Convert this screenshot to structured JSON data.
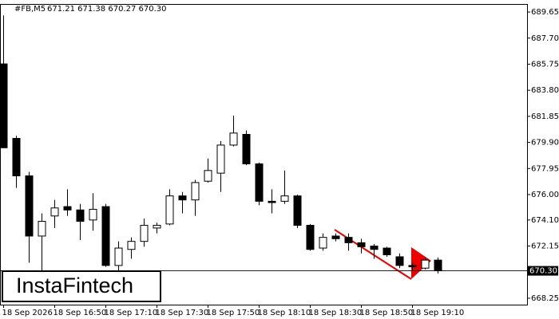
{
  "chart_data": {
    "type": "candlestick",
    "symbol": "#FB,M5",
    "ohlc_text": "671.21 671.38 670.27 670.30",
    "watermark": "InstaFintech",
    "categories": [
      "18 Sep 2026",
      null,
      null,
      null,
      "18 Sep 16:50",
      null,
      null,
      null,
      "18 Sep 17:10",
      null,
      null,
      null,
      "18 Sep 17:30",
      null,
      null,
      null,
      "18 Sep 17:50",
      null,
      null,
      null,
      "18 Sep 18:10",
      null,
      null,
      null,
      "18 Sep 18:30",
      null,
      null,
      null,
      "18 Sep 18:50",
      null,
      null,
      null,
      "18 Sep 19:10",
      null,
      null
    ],
    "open": [
      685.77,
      680.2,
      677.4,
      672.9,
      674.4,
      675.1,
      674.85,
      674.1,
      675.1,
      670.7,
      671.9,
      672.5,
      673.5,
      673.8,
      675.9,
      675.6,
      677.0,
      677.6,
      679.7,
      680.5,
      678.3,
      675.5,
      675.5,
      675.9,
      673.7,
      672.0,
      672.9,
      672.8,
      672.4,
      672.15,
      672.0,
      671.35,
      670.7,
      670.5,
      671.1
    ],
    "high": [
      689.4,
      680.4,
      677.7,
      674.6,
      675.6,
      676.4,
      675.3,
      676.1,
      675.3,
      672.5,
      672.8,
      674.2,
      673.9,
      676.4,
      676.2,
      677.1,
      678.7,
      680.0,
      681.9,
      680.8,
      678.4,
      676.4,
      677.8,
      676.0,
      673.8,
      673.1,
      673.1,
      673.1,
      672.7,
      672.3,
      672.1,
      671.6,
      670.9,
      671.3,
      671.3
    ],
    "low": [
      679.5,
      676.5,
      670.9,
      670.3,
      673.5,
      674.4,
      672.6,
      673.3,
      670.6,
      670.3,
      671.2,
      672.1,
      673.1,
      673.7,
      674.6,
      674.4,
      676.9,
      676.2,
      679.6,
      678.2,
      675.2,
      674.6,
      675.3,
      673.5,
      671.8,
      671.8,
      672.5,
      671.8,
      671.6,
      671.2,
      671.35,
      670.5,
      670.3,
      670.4,
      670.1
    ],
    "close": [
      679.5,
      677.4,
      672.9,
      674.0,
      675.0,
      674.85,
      674.0,
      674.9,
      670.7,
      672.0,
      672.5,
      673.7,
      673.7,
      675.9,
      675.6,
      676.9,
      677.8,
      679.7,
      680.6,
      678.3,
      675.5,
      675.4,
      675.9,
      673.7,
      671.9,
      672.8,
      672.7,
      672.4,
      672.1,
      671.9,
      671.5,
      670.7,
      670.6,
      671.1,
      670.3
    ],
    "up_color": "#ffffff",
    "down_color": "#000000",
    "outline_color": "#000000",
    "current_price": {
      "value": 670.3,
      "label": "670.30"
    },
    "ylim": [
      667.77,
      690.25
    ],
    "yticks": [
      689.65,
      {
        "value": 687.7,
        "label": "687.70"
      },
      685.75,
      {
        "value": 683.8,
        "label": "683.80"
      },
      681.85,
      {
        "value": 679.9,
        "label": "679.90"
      },
      677.95,
      {
        "value": 676,
        "label": "676.00"
      },
      {
        "value": 674.1,
        "label": "674.10"
      },
      672.15,
      668.25
    ]
  }
}
